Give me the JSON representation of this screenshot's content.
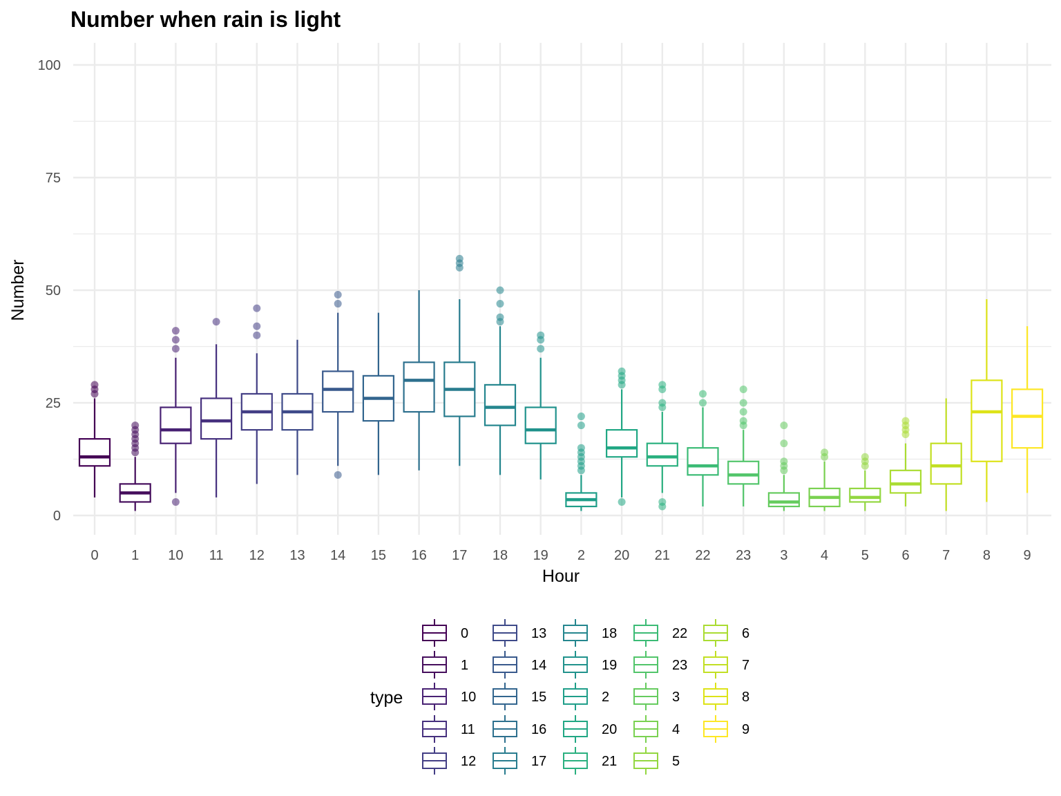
{
  "chart_data": {
    "type": "boxplot",
    "title": "Number when rain is light",
    "xlabel": "Hour",
    "ylabel": "Number",
    "ylim": [
      -5,
      105
    ],
    "yticks": [
      0,
      25,
      50,
      75,
      100
    ],
    "grid": true,
    "legend": {
      "title": "type",
      "placement": "bottom",
      "entries": [
        "0",
        "1",
        "10",
        "11",
        "12",
        "13",
        "14",
        "15",
        "16",
        "17",
        "18",
        "19",
        "2",
        "20",
        "21",
        "22",
        "23",
        "3",
        "4",
        "5",
        "6",
        "7",
        "8",
        "9"
      ]
    },
    "colors": [
      "#440154",
      "#450d5c",
      "#482173",
      "#46307e",
      "#433e85",
      "#3e4a89",
      "#38598c",
      "#32658e",
      "#2d708e",
      "#287c8e",
      "#24868e",
      "#20928c",
      "#1f9e89",
      "#21a784",
      "#2ab07f",
      "#3bbb75",
      "#51c56a",
      "#65cb5e",
      "#7ad151",
      "#93d741",
      "#aadc32",
      "#c2df23",
      "#dde318",
      "#fde725"
    ],
    "categories": [
      "0",
      "1",
      "10",
      "11",
      "12",
      "13",
      "14",
      "15",
      "16",
      "17",
      "18",
      "19",
      "2",
      "20",
      "21",
      "22",
      "23",
      "3",
      "4",
      "5",
      "6",
      "7",
      "8",
      "9"
    ],
    "boxes": [
      {
        "q1": 11,
        "median": 13,
        "q3": 17,
        "whisker_low": 4,
        "whisker_high": 26,
        "outliers": [
          27,
          28,
          29
        ]
      },
      {
        "q1": 3,
        "median": 5,
        "q3": 7,
        "whisker_low": 1,
        "whisker_high": 13,
        "outliers": [
          14,
          15,
          16,
          17,
          18,
          19,
          20
        ]
      },
      {
        "q1": 16,
        "median": 19,
        "q3": 24,
        "whisker_low": 5,
        "whisker_high": 35,
        "outliers": [
          3,
          37,
          39,
          41
        ]
      },
      {
        "q1": 17,
        "median": 21,
        "q3": 26,
        "whisker_low": 4,
        "whisker_high": 38,
        "outliers": [
          43
        ]
      },
      {
        "q1": 19,
        "median": 23,
        "q3": 27,
        "whisker_low": 7,
        "whisker_high": 36,
        "outliers": [
          40,
          42,
          46
        ]
      },
      {
        "q1": 19,
        "median": 23,
        "q3": 27,
        "whisker_low": 9,
        "whisker_high": 39,
        "outliers": []
      },
      {
        "q1": 23,
        "median": 28,
        "q3": 32,
        "whisker_low": 11,
        "whisker_high": 45,
        "outliers": [
          9,
          47,
          49
        ]
      },
      {
        "q1": 21,
        "median": 26,
        "q3": 31,
        "whisker_low": 9,
        "whisker_high": 45,
        "outliers": []
      },
      {
        "q1": 23,
        "median": 30,
        "q3": 34,
        "whisker_low": 10,
        "whisker_high": 50,
        "outliers": []
      },
      {
        "q1": 22,
        "median": 28,
        "q3": 34,
        "whisker_low": 11,
        "whisker_high": 48,
        "outliers": [
          55,
          56,
          57
        ]
      },
      {
        "q1": 20,
        "median": 24,
        "q3": 29,
        "whisker_low": 9,
        "whisker_high": 42,
        "outliers": [
          43,
          44,
          47,
          50
        ]
      },
      {
        "q1": 16,
        "median": 19,
        "q3": 24,
        "whisker_low": 8,
        "whisker_high": 35,
        "outliers": [
          37,
          39,
          40
        ]
      },
      {
        "q1": 2,
        "median": 3.5,
        "q3": 5,
        "whisker_low": 1,
        "whisker_high": 9,
        "outliers": [
          10,
          11,
          12,
          13,
          14,
          15,
          20,
          22
        ]
      },
      {
        "q1": 13,
        "median": 15,
        "q3": 19,
        "whisker_low": 4,
        "whisker_high": 28,
        "outliers": [
          3,
          29,
          30,
          31,
          32
        ]
      },
      {
        "q1": 11,
        "median": 13,
        "q3": 16,
        "whisker_low": 5,
        "whisker_high": 23,
        "outliers": [
          2,
          3,
          24,
          25,
          28,
          29
        ]
      },
      {
        "q1": 9,
        "median": 11,
        "q3": 15,
        "whisker_low": 2,
        "whisker_high": 24,
        "outliers": [
          25,
          27
        ]
      },
      {
        "q1": 7,
        "median": 9,
        "q3": 12,
        "whisker_low": 2,
        "whisker_high": 19,
        "outliers": [
          20,
          21,
          23,
          25,
          28
        ]
      },
      {
        "q1": 2,
        "median": 3,
        "q3": 5,
        "whisker_low": 1,
        "whisker_high": 9,
        "outliers": [
          10,
          11,
          12,
          16,
          20
        ]
      },
      {
        "q1": 2,
        "median": 4,
        "q3": 6,
        "whisker_low": 1,
        "whisker_high": 12,
        "outliers": [
          13,
          14
        ]
      },
      {
        "q1": 3,
        "median": 4,
        "q3": 6,
        "whisker_low": 1,
        "whisker_high": 10,
        "outliers": [
          11,
          12,
          13
        ]
      },
      {
        "q1": 5,
        "median": 7,
        "q3": 10,
        "whisker_low": 2,
        "whisker_high": 16,
        "outliers": [
          18,
          19,
          20,
          21
        ]
      },
      {
        "q1": 7,
        "median": 11,
        "q3": 16,
        "whisker_low": 1,
        "whisker_high": 26,
        "outliers": []
      },
      {
        "q1": 12,
        "median": 23,
        "q3": 30,
        "whisker_low": 3,
        "whisker_high": 48,
        "outliers": []
      },
      {
        "q1": 15,
        "median": 22,
        "q3": 28,
        "whisker_low": 5,
        "whisker_high": 42,
        "outliers": []
      }
    ]
  }
}
